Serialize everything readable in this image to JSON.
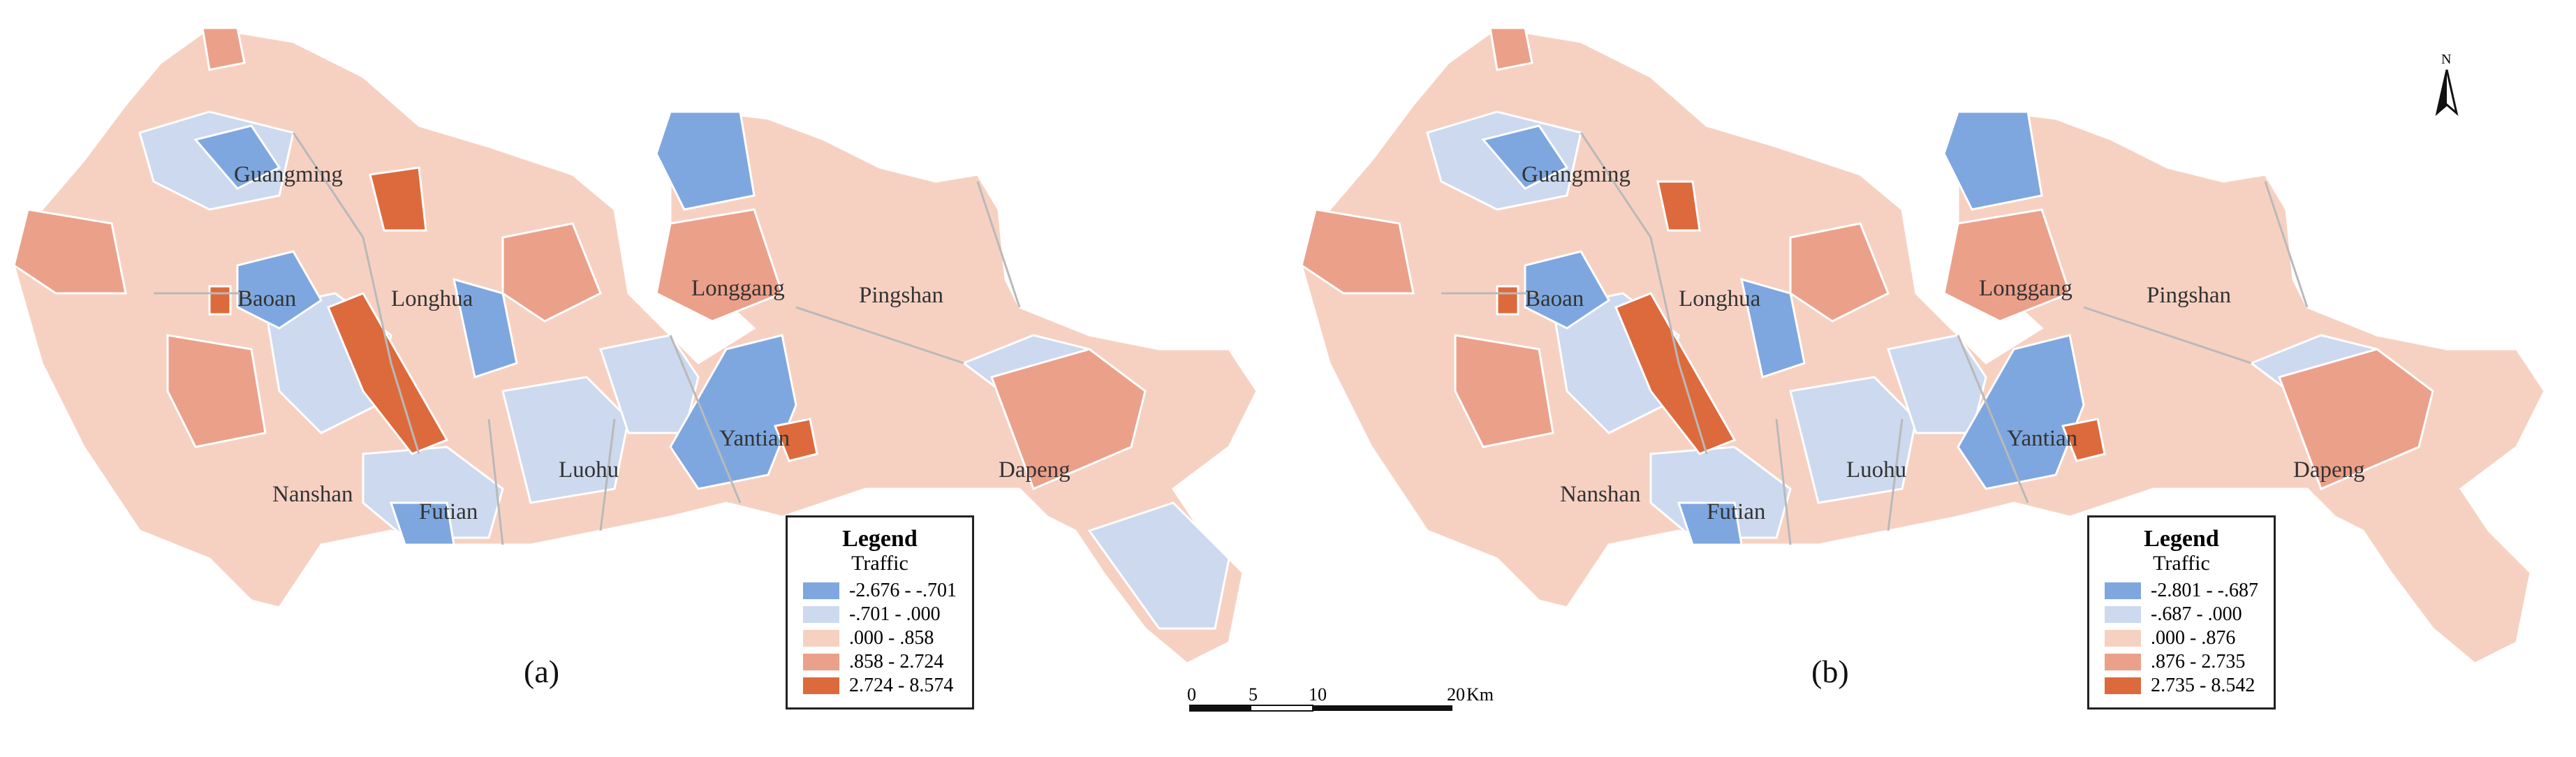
{
  "panels": [
    {
      "id": "a",
      "caption": "(a)",
      "legend": {
        "title": "Legend",
        "subtitle": "Traffic",
        "classes": [
          {
            "label": "-2.676 - -.701",
            "color": "#7ea7df"
          },
          {
            "label": "-.701 - .000",
            "color": "#cdd9ee"
          },
          {
            "label": ".000 - .858",
            "color": "#f6d1c2"
          },
          {
            "label": ".858 - 2.724",
            "color": "#eba08a"
          },
          {
            "label": "2.724 - 8.574",
            "color": "#dd6a3c"
          }
        ]
      },
      "districts": [
        "Guangming",
        "Baoan",
        "Longhua",
        "Longgang",
        "Pingshan",
        "Nanshan",
        "Futian",
        "Luohu",
        "Yantian",
        "Dapeng"
      ]
    },
    {
      "id": "b",
      "caption": "(b)",
      "legend": {
        "title": "Legend",
        "subtitle": "Traffic",
        "classes": [
          {
            "label": "-2.801 - -.687",
            "color": "#7ea7df"
          },
          {
            "label": "-.687 - .000",
            "color": "#cdd9ee"
          },
          {
            "label": ".000 - .876",
            "color": "#f6d1c2"
          },
          {
            "label": ".876 - 2.735",
            "color": "#eba08a"
          },
          {
            "label": "2.735 - 8.542",
            "color": "#dd6a3c"
          }
        ]
      },
      "districts": [
        "Guangming",
        "Baoan",
        "Longhua",
        "Longgang",
        "Pingshan",
        "Nanshan",
        "Futian",
        "Luohu",
        "Yantian",
        "Dapeng"
      ]
    }
  ],
  "scale_bar": {
    "ticks": [
      "0",
      "5",
      "10",
      "20"
    ],
    "unit": "Km"
  },
  "north_arrow": {
    "label": "N",
    "icon": "north-arrow-icon"
  }
}
